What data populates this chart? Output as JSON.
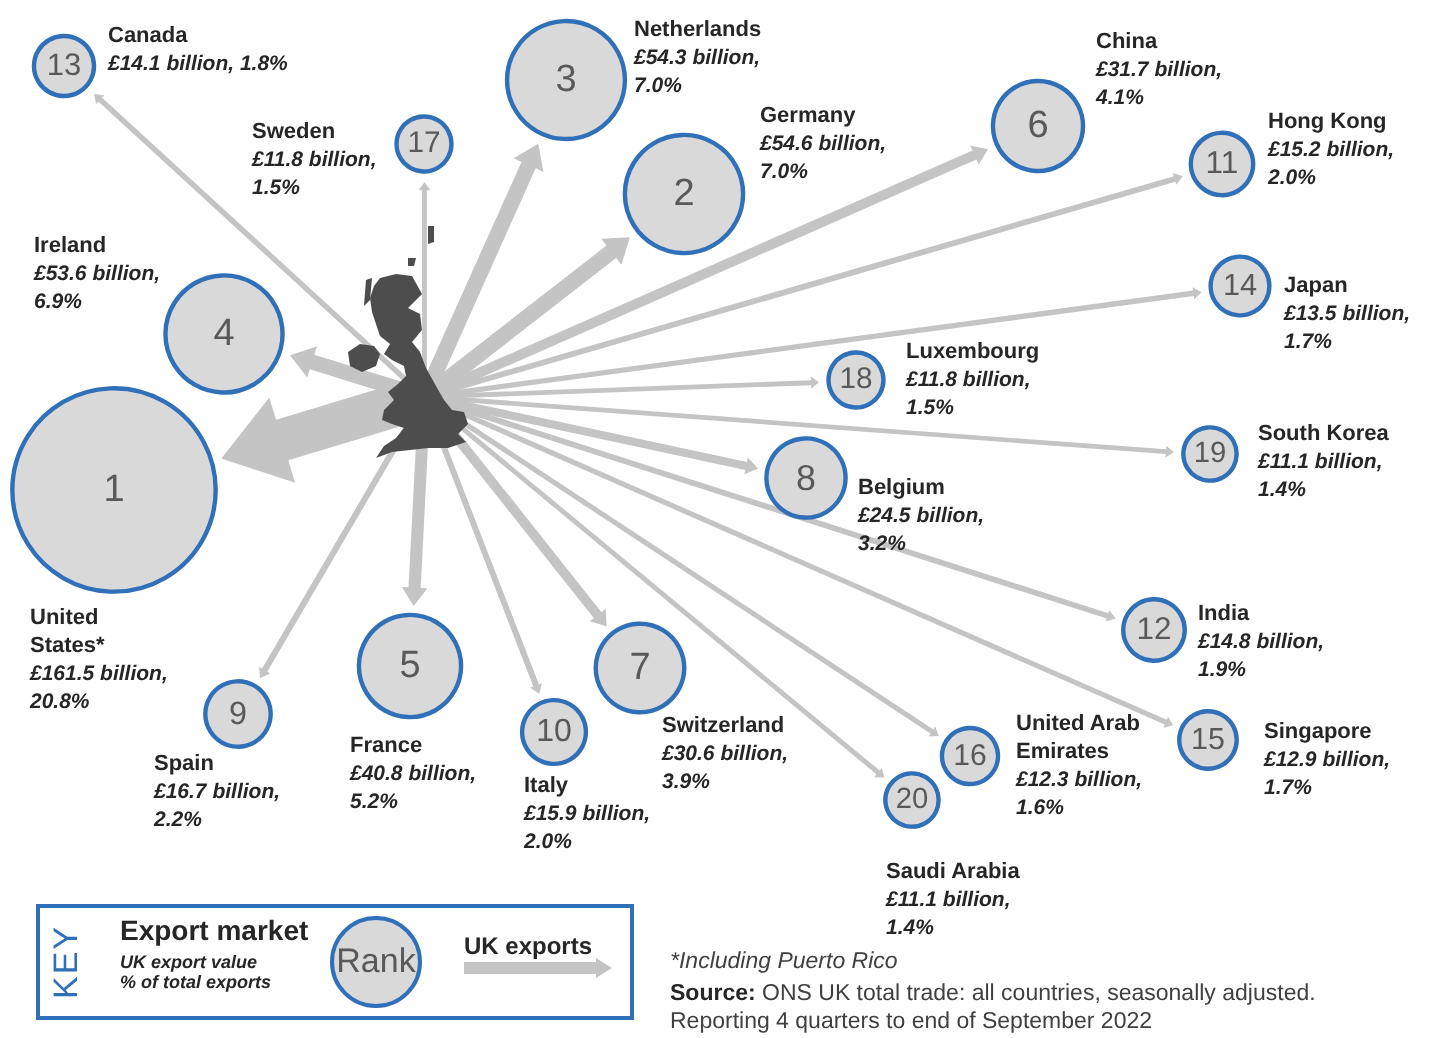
{
  "chart_data": {
    "type": "other",
    "categories": [
      "United States*",
      "Germany",
      "Netherlands",
      "Ireland",
      "France",
      "China",
      "Switzerland",
      "Belgium",
      "Spain",
      "Italy",
      "Hong Kong",
      "India",
      "Canada",
      "Japan",
      "Singapore",
      "United Arab Emirates",
      "Sweden",
      "Luxembourg",
      "South Korea",
      "Saudi Arabia"
    ],
    "series": [
      {
        "values": [
          161.5,
          54.6,
          54.3,
          53.6,
          40.8,
          31.7,
          30.6,
          24.5,
          16.7,
          15.9,
          15.2,
          14.8,
          14.1,
          13.5,
          12.9,
          12.3,
          11.8,
          11.8,
          11.1,
          11.1
        ],
        "value_labels": [
          "£161.5 billion,",
          "£54.6 billion,",
          "£54.3 billion,",
          "£53.6 billion,",
          "£40.8 billion,",
          "£31.7 billion,",
          "£30.6 billion,",
          "£24.5 billion,",
          "£16.7 billion,",
          "£15.9 billion,",
          "£15.2 billion,",
          "£14.8 billion,",
          "£14.1 billion,",
          "£13.5 billion,",
          "£12.9 billion,",
          "£12.3 billion,",
          "£11.8 billion,",
          "£11.8 billion,",
          "£11.1 billion,",
          "£11.1 billion,"
        ]
      },
      {
        "values": [
          20.8,
          7.0,
          7.0,
          6.9,
          5.2,
          4.1,
          3.9,
          3.2,
          2.2,
          2.0,
          2.0,
          1.9,
          1.8,
          1.7,
          1.7,
          1.6,
          1.5,
          1.5,
          1.4,
          1.4
        ],
        "value_labels": [
          "20.8%",
          "7.0%",
          "7.0%",
          "6.9%",
          "5.2%",
          "4.1%",
          "3.9%",
          "3.2%",
          "2.2%",
          "2.0%",
          "2.0%",
          "1.9%",
          "1.8%",
          "1.7%",
          "1.7%",
          "1.6%",
          "1.5%",
          "1.5%",
          "1.4%",
          "1.4%"
        ]
      },
      {
        "color": "#d9d9d9",
        "values": [
          1,
          2,
          3,
          4,
          5,
          6,
          7,
          8,
          9,
          10,
          11,
          12,
          13,
          14,
          15,
          16,
          17,
          18,
          19,
          20
        ],
        "value_labels": [
          "1",
          "2",
          "3",
          "4",
          "5",
          "6",
          "7",
          "8",
          "9",
          "10",
          "11",
          "12",
          "13",
          "14",
          "15",
          "16",
          "17",
          "18",
          "19",
          "20"
        ]
      }
    ],
    "annotations": [
      "KEY",
      "Export market",
      "UK export value",
      "% of total exports",
      "Rank",
      "UK exports",
      "*Including Puerto Rico",
      "Source: ONS UK total trade: all countries, seasonally adjusted. Reporting 4 quarters to end of September 2022"
    ]
  }
}
